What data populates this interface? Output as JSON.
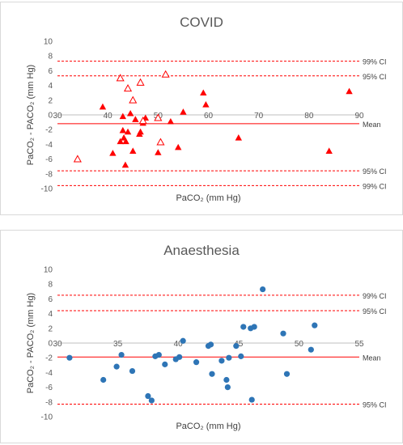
{
  "chart_data": [
    {
      "type": "scatter",
      "title": "COVID",
      "xlabel": "PaCO₂ (mm Hg)",
      "ylabel": "PaCO₂ - PACO₂ (mm Hg)",
      "xlim": [
        30,
        90
      ],
      "ylim": [
        -10,
        10
      ],
      "xticks": [
        "30",
        "40",
        "50",
        "60",
        "70",
        "80",
        "90"
      ],
      "yticks": [
        "-10",
        "-8",
        "-6",
        "-4",
        "-2",
        "0",
        "2",
        "4",
        "6",
        "8",
        "10"
      ],
      "grid": false,
      "colors": {
        "marker": "#ff0000",
        "mean_line": "#ff0000",
        "ci_line": "#ff0000"
      },
      "reference_lines": [
        {
          "label": "99% CI",
          "y": 7.3,
          "style": "dashed"
        },
        {
          "label": "95% CI",
          "y": 5.3,
          "style": "dashed"
        },
        {
          "label": "Mean",
          "y": -1.2,
          "style": "solid"
        },
        {
          "label": "95% CI",
          "y": -7.6,
          "style": "dashed"
        },
        {
          "label": "99% CI",
          "y": -9.6,
          "style": "dashed"
        }
      ],
      "series": [
        {
          "marker": "triangle-filled",
          "points": [
            [
              39,
              1.1
            ],
            [
              41,
              -5.2
            ],
            [
              42.5,
              -3.6
            ],
            [
              43,
              -2.1
            ],
            [
              43,
              -0.2
            ],
            [
              43.2,
              -3.1
            ],
            [
              43.5,
              -6.8
            ],
            [
              43.6,
              -3.6
            ],
            [
              44,
              -2.3
            ],
            [
              44.5,
              0.2
            ],
            [
              45,
              -4.9
            ],
            [
              45.5,
              -0.6
            ],
            [
              46.3,
              -2.6
            ],
            [
              46.5,
              -2.3
            ],
            [
              47,
              -1.1
            ],
            [
              47.5,
              -0.4
            ],
            [
              50,
              -5.1
            ],
            [
              52.5,
              -0.9
            ],
            [
              54,
              -4.4
            ],
            [
              55,
              0.4
            ],
            [
              59,
              3
            ],
            [
              59.5,
              1.4
            ],
            [
              66,
              -3.1
            ],
            [
              84,
              -4.9
            ],
            [
              88,
              3.2
            ]
          ]
        },
        {
          "marker": "triangle-open",
          "points": [
            [
              34,
              -6
            ],
            [
              42.5,
              5
            ],
            [
              44,
              3.6
            ],
            [
              45,
              2
            ],
            [
              46.5,
              4.4
            ],
            [
              47,
              -0.8
            ],
            [
              50,
              -0.4
            ],
            [
              50.5,
              -3.7
            ],
            [
              51.5,
              5.5
            ]
          ]
        }
      ]
    },
    {
      "type": "scatter",
      "title": "Anaesthesia",
      "xlabel": "PaCO₂ (mm Hg)",
      "ylabel": "PaCO₂ - PACO₂ (mm Hg)",
      "xlim": [
        30,
        55
      ],
      "ylim": [
        -10,
        10
      ],
      "xticks": [
        "30",
        "35",
        "40",
        "45",
        "50",
        "55"
      ],
      "yticks": [
        "-10",
        "-8",
        "-6",
        "-4",
        "-2",
        "0",
        "2",
        "4",
        "6",
        "8",
        "10"
      ],
      "grid": false,
      "colors": {
        "marker": "#2e75b6",
        "mean_line": "#ff0000",
        "ci_line": "#ff0000"
      },
      "reference_lines": [
        {
          "label": "99% CI",
          "y": 6.5,
          "style": "dashed"
        },
        {
          "label": "95% CI",
          "y": 4.4,
          "style": "dashed"
        },
        {
          "label": "Mean",
          "y": -1.9,
          "style": "solid"
        },
        {
          "label": "95% CI",
          "y": -8.3,
          "style": "dashed"
        }
      ],
      "series": [
        {
          "marker": "circle",
          "points": [
            [
              31,
              -2
            ],
            [
              33.8,
              -5
            ],
            [
              34.9,
              -3.2
            ],
            [
              35.3,
              -1.6
            ],
            [
              36.2,
              -3.8
            ],
            [
              37.5,
              -7.2
            ],
            [
              37.8,
              -7.8
            ],
            [
              38.1,
              -1.8
            ],
            [
              38.4,
              -1.6
            ],
            [
              38.9,
              -2.9
            ],
            [
              39.8,
              -2.2
            ],
            [
              40.1,
              -1.9
            ],
            [
              40.4,
              0.3
            ],
            [
              41.5,
              -2.6
            ],
            [
              42.5,
              -0.4
            ],
            [
              42.7,
              -0.2
            ],
            [
              42.8,
              -4.2
            ],
            [
              43.6,
              -2.4
            ],
            [
              44,
              -5
            ],
            [
              44.1,
              -6
            ],
            [
              44.2,
              -2
            ],
            [
              44.8,
              -0.4
            ],
            [
              45.2,
              -1.8
            ],
            [
              45.4,
              2.2
            ],
            [
              46,
              2
            ],
            [
              46.1,
              -7.7
            ],
            [
              46.3,
              2.2
            ],
            [
              47,
              7.3
            ],
            [
              48.7,
              1.3
            ],
            [
              49,
              -4.2
            ],
            [
              51,
              -0.9
            ],
            [
              51.3,
              2.4
            ]
          ]
        }
      ]
    }
  ]
}
